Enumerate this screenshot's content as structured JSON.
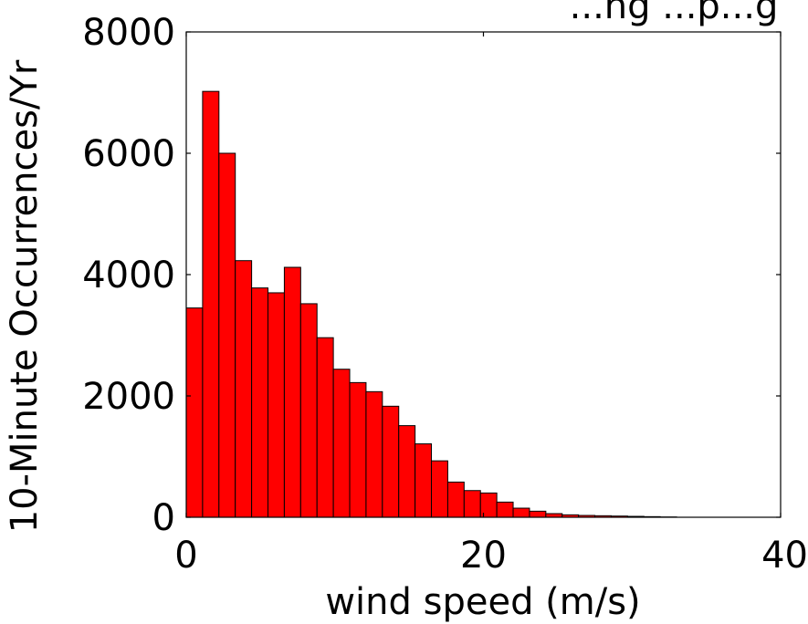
{
  "chart_data": {
    "type": "bar",
    "title": "...ng ...p...g",
    "xlabel": "wind speed (m/s)",
    "ylabel": "10-Minute Occurrences/Yr",
    "xlim": [
      0,
      40
    ],
    "ylim": [
      0,
      8000
    ],
    "xticks": [
      0,
      20,
      40
    ],
    "xtick_labels": [
      "0",
      "20",
      "40"
    ],
    "yticks": [
      0,
      2000,
      4000,
      6000,
      8000
    ],
    "ytick_labels": [
      "0",
      "2000",
      "4000",
      "6000",
      "8000"
    ],
    "bin_width": 1.1,
    "bin_starts": [
      0,
      1.1,
      2.2,
      3.3,
      4.4,
      5.5,
      6.6,
      7.7,
      8.8,
      9.9,
      11.0,
      12.1,
      13.2,
      14.3,
      15.4,
      16.5,
      17.6,
      18.7,
      19.8,
      20.9,
      22.0,
      23.1,
      24.2,
      25.3,
      26.4,
      27.5,
      28.6,
      29.7,
      30.8,
      31.9
    ],
    "values": [
      3450,
      7020,
      6000,
      4230,
      3780,
      3700,
      4120,
      3520,
      2960,
      2440,
      2220,
      2070,
      1830,
      1510,
      1210,
      930,
      580,
      440,
      400,
      250,
      150,
      100,
      60,
      40,
      30,
      25,
      20,
      15,
      10,
      5
    ],
    "bar_color": "#ff0000",
    "edge_color": "#000000",
    "grid": false,
    "legend": "none"
  }
}
